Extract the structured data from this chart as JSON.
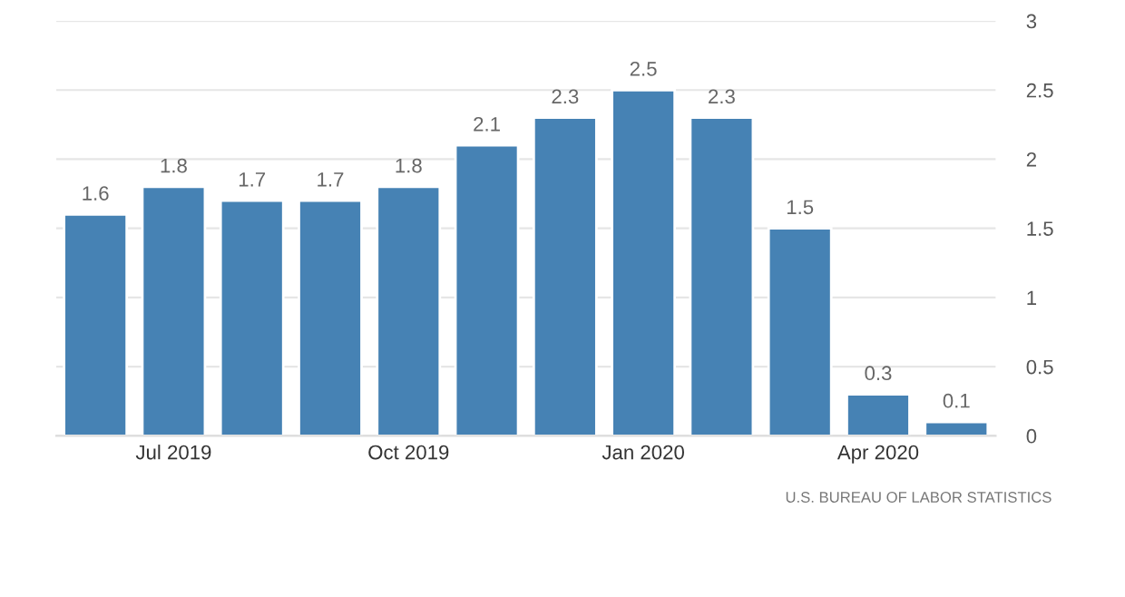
{
  "chart_data": {
    "type": "bar",
    "categories": [
      null,
      "Jul 2019",
      null,
      null,
      "Oct 2019",
      null,
      null,
      "Jan 2020",
      null,
      null,
      "Apr 2020",
      null
    ],
    "values": [
      1.6,
      1.8,
      1.7,
      1.7,
      1.8,
      2.1,
      2.3,
      2.5,
      2.3,
      1.5,
      0.3,
      0.1
    ],
    "color": "#4682b4",
    "ylim": [
      0,
      3
    ],
    "yticks": [
      0,
      0.5,
      1,
      1.5,
      2,
      2.5,
      3
    ],
    "grid": "y",
    "data_labels": true,
    "annotations": [
      "U.S. BUREAU OF LABOR STATISTICS"
    ]
  }
}
